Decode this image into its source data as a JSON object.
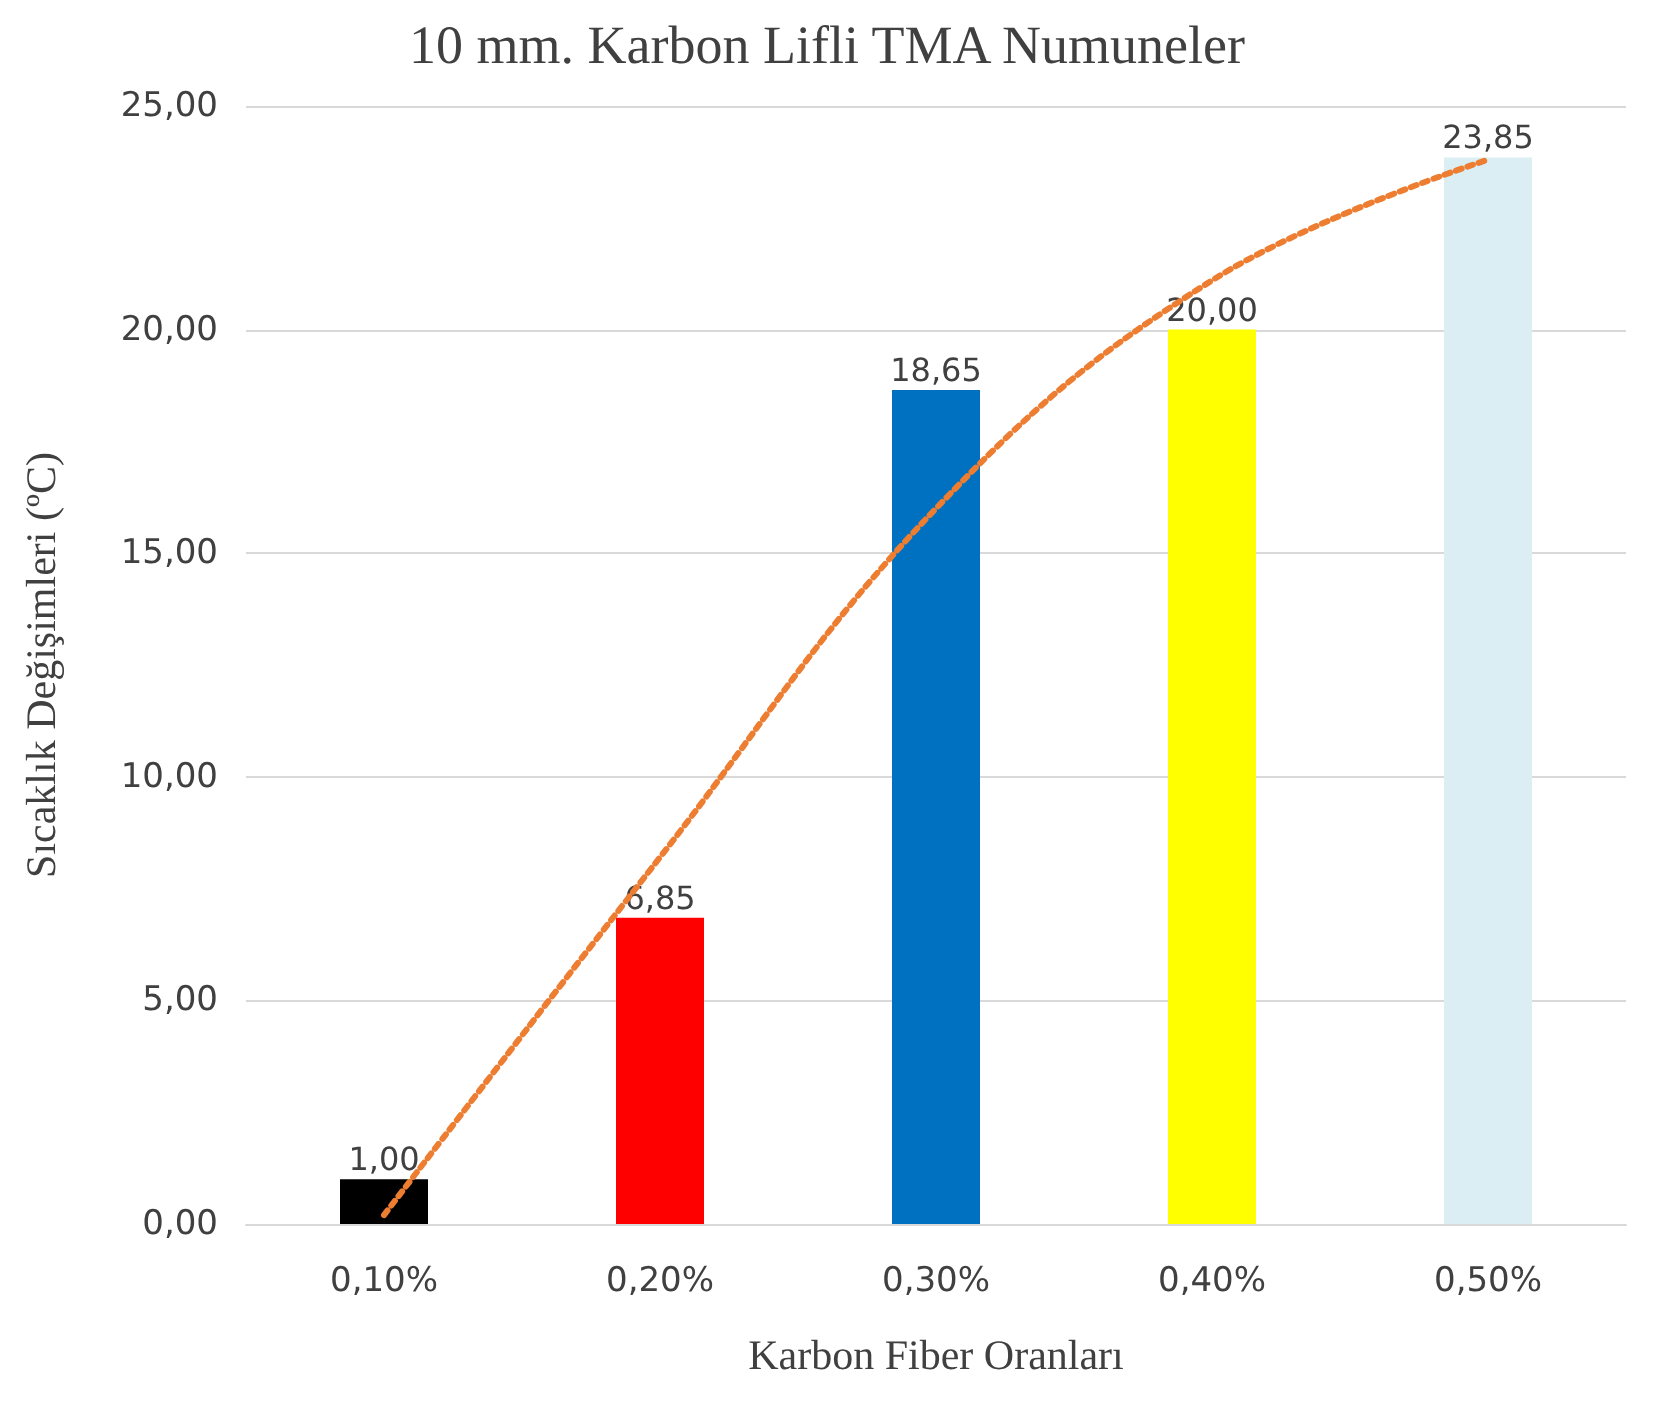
{
  "chart_data": {
    "type": "bar",
    "title": "10 mm. Karbon Lifli TMA Numuneler",
    "xlabel": "Karbon Fiber Oranları",
    "ylabel": "Sıcaklık Değişimleri (ºC)",
    "categories": [
      "0,10%",
      "0,20%",
      "0,30%",
      "0,40%",
      "0,50%"
    ],
    "series": [
      {
        "colors": [
          "#000000",
          "#ff0000",
          "#0070c0",
          "#ffff00",
          "#daeef3"
        ],
        "values": [
          1.0,
          6.85,
          18.65,
          20.0,
          23.85
        ],
        "value_labels": [
          "1,00",
          "6,85",
          "18,65",
          "20,00",
          "23,85"
        ]
      },
      {
        "type": "line",
        "color": "#ed7d31",
        "values": [
          0.2,
          8.2,
          16.0,
          21.1,
          23.8
        ],
        "line_style": "dotted",
        "marker": "none"
      }
    ],
    "ylim": [
      0,
      25
    ],
    "yticks": [
      {
        "value": 0,
        "label": "0,00"
      },
      {
        "value": 5,
        "label": "5,00"
      },
      {
        "value": 10,
        "label": "10,00"
      },
      {
        "value": 15,
        "label": "15,00"
      },
      {
        "value": 20,
        "label": "20,00"
      },
      {
        "value": 25,
        "label": "25,00"
      }
    ],
    "grid": "y"
  }
}
